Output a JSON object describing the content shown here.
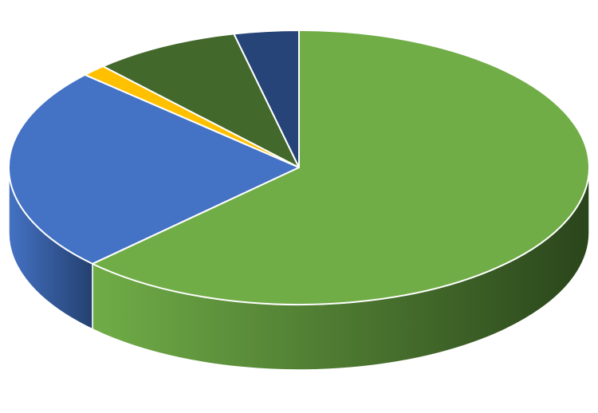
{
  "chart_data": {
    "type": "pie",
    "style": "3d",
    "title": "",
    "legend": "none",
    "data_labels": false,
    "start_angle_deg": 0,
    "direction": "clockwise",
    "slices": [
      {
        "value": 62.6,
        "color": "#70AD47",
        "side_dark": "#2A451B"
      },
      {
        "value": 24.2,
        "color": "#4472C4",
        "side_dark": "#24406F"
      },
      {
        "value": 1.4,
        "color": "#FFC000",
        "side_dark": "#8A6800"
      },
      {
        "value": 8.2,
        "color": "#43682B",
        "side_dark": "#223815"
      },
      {
        "value": 3.6,
        "color": "#264478",
        "side_dark": "#142542"
      }
    ]
  }
}
